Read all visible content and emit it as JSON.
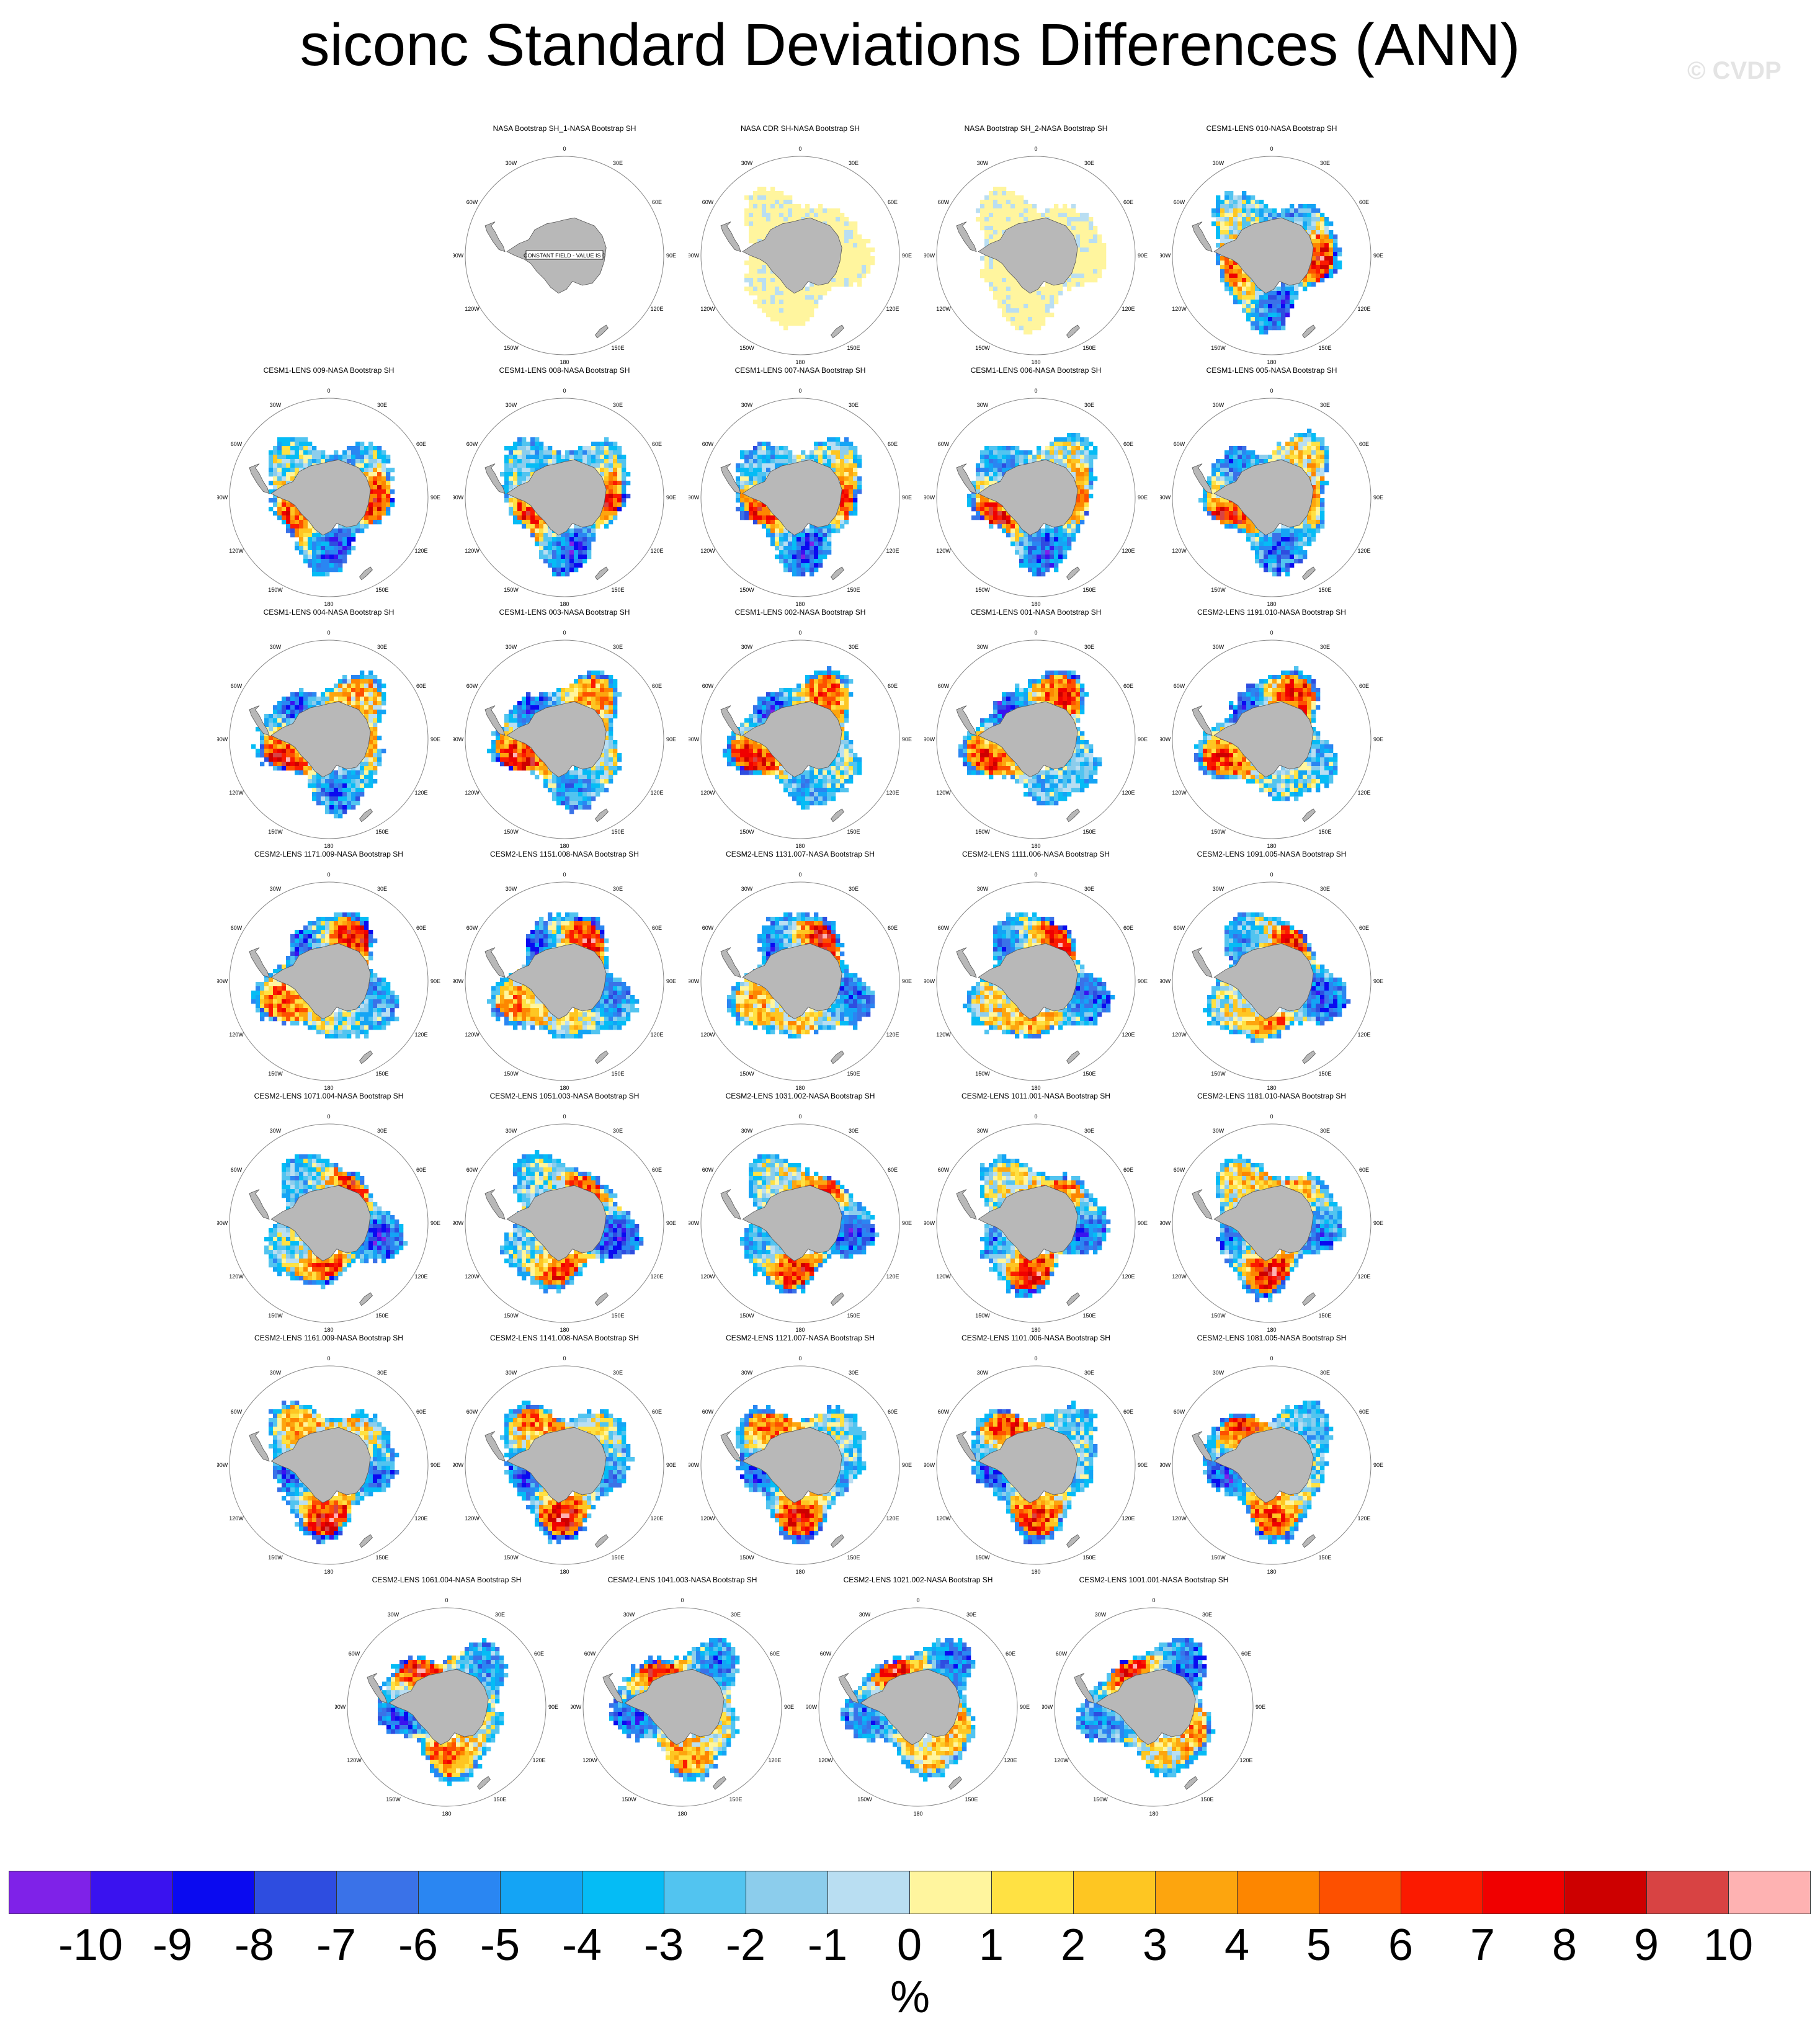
{
  "title": "siconc Standard Deviations Differences (ANN)",
  "watermark": "© CVDP",
  "units": "%",
  "chart_data": {
    "type": "heatmap",
    "title": "siconc Standard Deviations Differences (ANN)",
    "projection": "south polar stereographic",
    "lon_labels": [
      "0",
      "30E",
      "60E",
      "90E",
      "120E",
      "150E",
      "180",
      "150W",
      "120W",
      "90W",
      "60W",
      "30W"
    ],
    "colorbar": {
      "units": "%",
      "tick_labels": [
        "-10",
        "-9",
        "-8",
        "-7",
        "-6",
        "-5",
        "-4",
        "-3",
        "-2",
        "-1",
        "0",
        "1",
        "2",
        "3",
        "4",
        "5",
        "6",
        "7",
        "8",
        "9",
        "10"
      ],
      "colors": [
        "#7f22e8",
        "#3a12ef",
        "#0a0af0",
        "#2e4de0",
        "#3a72e8",
        "#2a86f2",
        "#14a4f5",
        "#05bcf5",
        "#52c4f0",
        "#8ccdec",
        "#b9def2",
        "#fff59e",
        "#ffe143",
        "#fec622",
        "#fda50e",
        "#fd8600",
        "#fd5000",
        "#fb1a00",
        "#f00000",
        "#cd0000",
        "#d84343",
        "#feb2b2"
      ]
    },
    "panels": [
      {
        "name": "NASA Bootstrap SH_1-NASA Bootstrap SH",
        "note": "CONSTANT FIELD - VALUE IS 0",
        "mode": "zero"
      },
      {
        "name": "NASA CDR SH-NASA Bootstrap SH",
        "mode": "obs"
      },
      {
        "name": "NASA Bootstrap SH_2-NASA Bootstrap SH",
        "mode": "obs"
      },
      {
        "name": "CESM1-LENS 010-NASA Bootstrap SH",
        "mode": "model"
      },
      {
        "name": "CESM1-LENS 009-NASA Bootstrap SH",
        "mode": "model"
      },
      {
        "name": "CESM1-LENS 008-NASA Bootstrap SH",
        "mode": "model"
      },
      {
        "name": "CESM1-LENS 007-NASA Bootstrap SH",
        "mode": "model"
      },
      {
        "name": "CESM1-LENS 006-NASA Bootstrap SH",
        "mode": "model"
      },
      {
        "name": "CESM1-LENS 005-NASA Bootstrap SH",
        "mode": "model"
      },
      {
        "name": "CESM1-LENS 004-NASA Bootstrap SH",
        "mode": "model"
      },
      {
        "name": "CESM1-LENS 003-NASA Bootstrap SH",
        "mode": "model"
      },
      {
        "name": "CESM1-LENS 002-NASA Bootstrap SH",
        "mode": "model"
      },
      {
        "name": "CESM1-LENS 001-NASA Bootstrap SH",
        "mode": "model"
      },
      {
        "name": "CESM2-LENS 1191.010-NASA Bootstrap SH",
        "mode": "model"
      },
      {
        "name": "CESM2-LENS 1171.009-NASA Bootstrap SH",
        "mode": "model"
      },
      {
        "name": "CESM2-LENS 1151.008-NASA Bootstrap SH",
        "mode": "model"
      },
      {
        "name": "CESM2-LENS 1131.007-NASA Bootstrap SH",
        "mode": "model"
      },
      {
        "name": "CESM2-LENS 1111.006-NASA Bootstrap SH",
        "mode": "model"
      },
      {
        "name": "CESM2-LENS 1091.005-NASA Bootstrap SH",
        "mode": "model"
      },
      {
        "name": "CESM2-LENS 1071.004-NASA Bootstrap SH",
        "mode": "model"
      },
      {
        "name": "CESM2-LENS 1051.003-NASA Bootstrap SH",
        "mode": "model"
      },
      {
        "name": "CESM2-LENS 1031.002-NASA Bootstrap SH",
        "mode": "model"
      },
      {
        "name": "CESM2-LENS 1011.001-NASA Bootstrap SH",
        "mode": "model"
      },
      {
        "name": "CESM2-LENS 1181.010-NASA Bootstrap SH",
        "mode": "model"
      },
      {
        "name": "CESM2-LENS 1161.009-NASA Bootstrap SH",
        "mode": "model"
      },
      {
        "name": "CESM2-LENS 1141.008-NASA Bootstrap SH",
        "mode": "model"
      },
      {
        "name": "CESM2-LENS 1121.007-NASA Bootstrap SH",
        "mode": "model"
      },
      {
        "name": "CESM2-LENS 1101.006-NASA Bootstrap SH",
        "mode": "model"
      },
      {
        "name": "CESM2-LENS 1081.005-NASA Bootstrap SH",
        "mode": "model"
      },
      {
        "name": "CESM2-LENS 1061.004-NASA Bootstrap SH",
        "mode": "model"
      },
      {
        "name": "CESM2-LENS 1041.003-NASA Bootstrap SH",
        "mode": "model"
      },
      {
        "name": "CESM2-LENS 1021.002-NASA Bootstrap SH",
        "mode": "model"
      },
      {
        "name": "CESM2-LENS 1001.001-NASA Bootstrap SH",
        "mode": "model"
      }
    ]
  }
}
